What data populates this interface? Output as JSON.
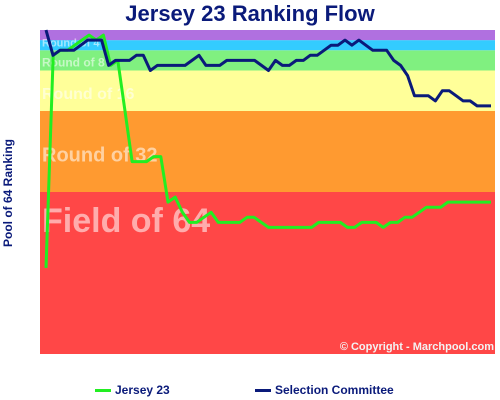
{
  "chart_data": {
    "type": "line",
    "title": "Jersey 23 Ranking Flow",
    "ylabel": "Pool of 64 Ranking",
    "xlabel": "",
    "ylim": [
      64,
      1
    ],
    "grid": false,
    "legend_position": "bottom",
    "copyright": "© Copyright - Marchpool.com",
    "bands": [
      {
        "label": "Field of 64",
        "from": 64,
        "to": 33,
        "color": "#ff4747"
      },
      {
        "label": "Round of 32",
        "from": 32,
        "to": 17,
        "color": "#ff9a30"
      },
      {
        "label": "Round of 16",
        "from": 16,
        "to": 9,
        "color": "#ffff99"
      },
      {
        "label": "Round of 8",
        "from": 8,
        "to": 5,
        "color": "#80f080"
      },
      {
        "label": "Round of 4",
        "from": 4,
        "to": 3,
        "color": "#33ccff"
      },
      {
        "label": "",
        "from": 2,
        "to": 1,
        "color": "#b070e0"
      }
    ],
    "series": [
      {
        "name": "Jersey 23",
        "color": "#22ee22",
        "values": [
          47,
          5,
          4,
          4,
          3,
          2,
          1,
          2,
          1,
          7,
          6,
          16,
          26,
          26,
          26,
          25,
          25,
          34,
          33,
          36,
          38,
          38,
          37,
          36,
          38,
          38,
          38,
          38,
          37,
          37,
          38,
          39,
          39,
          39,
          39,
          39,
          39,
          39,
          38,
          38,
          38,
          38,
          39,
          39,
          38,
          38,
          38,
          39,
          38,
          38,
          37,
          37,
          36,
          35,
          35,
          35,
          34,
          34,
          34,
          34,
          34,
          34,
          34
        ]
      },
      {
        "name": "Selection Committee",
        "color": "#0a1a7a",
        "values": [
          0,
          5,
          4,
          4,
          4,
          3,
          2,
          2,
          2,
          7,
          6,
          6,
          6,
          5,
          5,
          8,
          7,
          7,
          7,
          7,
          7,
          6,
          5,
          7,
          7,
          7,
          6,
          6,
          6,
          6,
          6,
          7,
          8,
          6,
          7,
          7,
          6,
          6,
          5,
          5,
          4,
          3,
          3,
          2,
          3,
          2,
          3,
          4,
          4,
          4,
          6,
          7,
          9,
          13,
          13,
          13,
          14,
          12,
          12,
          13,
          14,
          14,
          15,
          15,
          15
        ]
      }
    ]
  }
}
